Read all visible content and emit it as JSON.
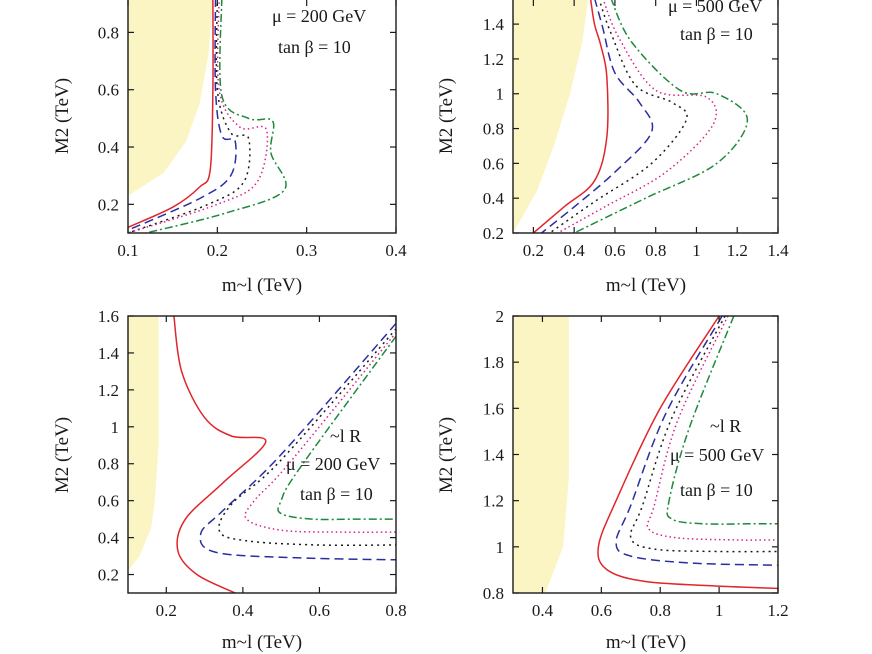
{
  "chart_data": [
    {
      "type": "line",
      "panel": "top-left",
      "xlabel": "m~l (TeV)",
      "ylabel": "M2 (TeV)",
      "xlim": [
        0.1,
        0.4
      ],
      "ylim": [
        0.1,
        0.92
      ],
      "xticks": [
        0.1,
        0.2,
        0.3,
        0.4
      ],
      "xtick_labels": [
        "0.1",
        "0.2",
        "0.3",
        "0.4"
      ],
      "yticks": [
        0.2,
        0.4,
        0.6,
        0.8
      ],
      "ytick_labels": [
        "0.2",
        "0.4",
        "0.6",
        "0.8"
      ],
      "annotations": [
        "μ = 200 GeV",
        "tan β = 10"
      ],
      "grid": false,
      "excluded_region": [
        [
          0.1,
          0.92
        ],
        [
          0.195,
          0.92
        ],
        [
          0.19,
          0.72
        ],
        [
          0.18,
          0.55
        ],
        [
          0.165,
          0.42
        ],
        [
          0.14,
          0.31
        ],
        [
          0.1,
          0.23
        ]
      ],
      "series": [
        {
          "color": "#e0262b",
          "dash": "",
          "points": [
            [
              0.195,
              0.92
            ],
            [
              0.195,
              0.6
            ],
            [
              0.192,
              0.32
            ],
            [
              0.18,
              0.26
            ],
            [
              0.15,
              0.19
            ],
            [
              0.1,
              0.12
            ]
          ]
        },
        {
          "color": "#2a2ea0",
          "dash": "9,5",
          "points": [
            [
              0.198,
              0.92
            ],
            [
              0.198,
              0.6
            ],
            [
              0.205,
              0.44
            ],
            [
              0.22,
              0.42
            ],
            [
              0.215,
              0.3
            ],
            [
              0.18,
              0.22
            ],
            [
              0.1,
              0.11
            ]
          ]
        },
        {
          "color": "#1a1a1a",
          "dash": "2,4",
          "points": [
            [
              0.2,
              0.92
            ],
            [
              0.2,
              0.6
            ],
            [
              0.215,
              0.45
            ],
            [
              0.235,
              0.43
            ],
            [
              0.23,
              0.28
            ],
            [
              0.19,
              0.2
            ],
            [
              0.1,
              0.1
            ]
          ]
        },
        {
          "color": "#d6228a",
          "dash": "1.5,3",
          "points": [
            [
              0.202,
              0.92
            ],
            [
              0.202,
              0.6
            ],
            [
              0.225,
              0.47
            ],
            [
              0.255,
              0.46
            ],
            [
              0.245,
              0.28
            ],
            [
              0.2,
              0.2
            ],
            [
              0.1,
              0.1
            ]
          ]
        },
        {
          "color": "#1e8a3a",
          "dash": "8,3,2,3",
          "points": [
            [
              0.205,
              0.92
            ],
            [
              0.205,
              0.58
            ],
            [
              0.235,
              0.5
            ],
            [
              0.262,
              0.49
            ],
            [
              0.26,
              0.38
            ],
            [
              0.275,
              0.25
            ],
            [
              0.21,
              0.17
            ],
            [
              0.12,
              0.1
            ]
          ]
        }
      ]
    },
    {
      "type": "line",
      "panel": "top-right",
      "xlabel": "m~l (TeV)",
      "ylabel": "M2 (TeV)",
      "xlim": [
        0.1,
        1.4
      ],
      "ylim": [
        0.2,
        1.55
      ],
      "xticks": [
        0.2,
        0.4,
        0.6,
        0.8,
        1,
        1.2,
        1.4
      ],
      "xtick_labels": [
        "0.2",
        "0.4",
        "0.6",
        "0.8",
        "1",
        "1.2",
        "1.4"
      ],
      "yticks": [
        0.2,
        0.4,
        0.6,
        0.8,
        1,
        1.2,
        1.4
      ],
      "ytick_labels": [
        "0.2",
        "0.4",
        "0.6",
        "0.8",
        "1",
        "1.2",
        "1.4"
      ],
      "annotations": [
        "μ = 500 GeV",
        "tan β = 10"
      ],
      "grid": false,
      "excluded_region": [
        [
          0.1,
          1.55
        ],
        [
          0.47,
          1.55
        ],
        [
          0.44,
          1.3
        ],
        [
          0.38,
          1.0
        ],
        [
          0.3,
          0.7
        ],
        [
          0.22,
          0.45
        ],
        [
          0.16,
          0.32
        ],
        [
          0.1,
          0.2
        ]
      ],
      "series": [
        {
          "color": "#e0262b",
          "dash": "",
          "points": [
            [
              0.48,
              1.55
            ],
            [
              0.5,
              1.4
            ],
            [
              0.53,
              1.28
            ],
            [
              0.56,
              1.1
            ],
            [
              0.56,
              0.75
            ],
            [
              0.5,
              0.5
            ],
            [
              0.35,
              0.35
            ],
            [
              0.2,
              0.2
            ]
          ]
        },
        {
          "color": "#2a2ea0",
          "dash": "9,5",
          "points": [
            [
              0.5,
              1.55
            ],
            [
              0.54,
              1.38
            ],
            [
              0.6,
              1.12
            ],
            [
              0.72,
              0.95
            ],
            [
              0.78,
              0.78
            ],
            [
              0.6,
              0.55
            ],
            [
              0.4,
              0.35
            ],
            [
              0.24,
              0.2
            ]
          ]
        },
        {
          "color": "#1a1a1a",
          "dash": "2,4",
          "points": [
            [
              0.52,
              1.55
            ],
            [
              0.58,
              1.35
            ],
            [
              0.7,
              1.05
            ],
            [
              0.88,
              0.95
            ],
            [
              0.95,
              0.85
            ],
            [
              0.78,
              0.6
            ],
            [
              0.5,
              0.38
            ],
            [
              0.28,
              0.2
            ]
          ]
        },
        {
          "color": "#d6228a",
          "dash": "1.5,3",
          "points": [
            [
              0.54,
              1.55
            ],
            [
              0.62,
              1.32
            ],
            [
              0.8,
              1.02
            ],
            [
              1.05,
              0.98
            ],
            [
              1.08,
              0.82
            ],
            [
              0.85,
              0.55
            ],
            [
              0.55,
              0.35
            ],
            [
              0.32,
              0.2
            ]
          ]
        },
        {
          "color": "#1e8a3a",
          "dash": "8,3,2,3",
          "points": [
            [
              0.58,
              1.55
            ],
            [
              0.68,
              1.3
            ],
            [
              0.92,
              1.02
            ],
            [
              1.1,
              1.0
            ],
            [
              1.25,
              0.85
            ],
            [
              1.1,
              0.6
            ],
            [
              0.75,
              0.4
            ],
            [
              0.4,
              0.2
            ]
          ]
        }
      ]
    },
    {
      "type": "line",
      "panel": "bottom-left",
      "xlabel": "m~l (TeV)",
      "ylabel": "M2 (TeV)",
      "xlim": [
        0.1,
        0.8
      ],
      "ylim": [
        0.1,
        1.6
      ],
      "xticks": [
        0.2,
        0.4,
        0.6,
        0.8
      ],
      "xtick_labels": [
        "0.2",
        "0.4",
        "0.6",
        "0.8"
      ],
      "yticks": [
        0.2,
        0.4,
        0.6,
        0.8,
        1,
        1.2,
        1.4,
        1.6
      ],
      "ytick_labels": [
        "0.2",
        "0.4",
        "0.6",
        "0.8",
        "1",
        "1.2",
        "1.4",
        "1.6"
      ],
      "annotations": [
        "~l R",
        "μ = 200 GeV",
        "tan β = 10"
      ],
      "grid": false,
      "excluded_region": [
        [
          0.1,
          1.6
        ],
        [
          0.18,
          1.6
        ],
        [
          0.18,
          0.9
        ],
        [
          0.17,
          0.6
        ],
        [
          0.16,
          0.45
        ],
        [
          0.13,
          0.3
        ],
        [
          0.1,
          0.22
        ]
      ],
      "series": [
        {
          "color": "#e0262b",
          "dash": "",
          "points": [
            [
              0.22,
              1.6
            ],
            [
              0.24,
              1.3
            ],
            [
              0.3,
              1.05
            ],
            [
              0.37,
              0.95
            ],
            [
              0.46,
              0.92
            ],
            [
              0.35,
              0.7
            ],
            [
              0.25,
              0.5
            ],
            [
              0.23,
              0.33
            ],
            [
              0.28,
              0.2
            ],
            [
              0.38,
              0.1
            ]
          ]
        },
        {
          "color": "#2a2ea0",
          "dash": "9,5",
          "points": [
            [
              0.8,
              1.56
            ],
            [
              0.5,
              0.85
            ],
            [
              0.35,
              0.55
            ],
            [
              0.29,
              0.42
            ],
            [
              0.33,
              0.32
            ],
            [
              0.55,
              0.29
            ],
            [
              0.8,
              0.28
            ]
          ]
        },
        {
          "color": "#1a1a1a",
          "dash": "2,4",
          "points": [
            [
              0.8,
              1.53
            ],
            [
              0.5,
              0.82
            ],
            [
              0.37,
              0.58
            ],
            [
              0.34,
              0.43
            ],
            [
              0.42,
              0.38
            ],
            [
              0.6,
              0.36
            ],
            [
              0.8,
              0.36
            ]
          ]
        },
        {
          "color": "#d6228a",
          "dash": "1.5,3",
          "points": [
            [
              0.8,
              1.51
            ],
            [
              0.52,
              0.8
            ],
            [
              0.43,
              0.6
            ],
            [
              0.41,
              0.5
            ],
            [
              0.5,
              0.44
            ],
            [
              0.65,
              0.43
            ],
            [
              0.8,
              0.43
            ]
          ]
        },
        {
          "color": "#1e8a3a",
          "dash": "8,3,2,3",
          "points": [
            [
              0.8,
              1.49
            ],
            [
              0.55,
              0.78
            ],
            [
              0.5,
              0.6
            ],
            [
              0.5,
              0.53
            ],
            [
              0.58,
              0.5
            ],
            [
              0.7,
              0.5
            ],
            [
              0.8,
              0.5
            ]
          ]
        }
      ]
    },
    {
      "type": "line",
      "panel": "bottom-right",
      "xlabel": "m~l (TeV)",
      "ylabel": "M2 (TeV)",
      "xlim": [
        0.3,
        1.2
      ],
      "ylim": [
        0.8,
        2.0
      ],
      "xticks": [
        0.4,
        0.6,
        0.8,
        1,
        1.2
      ],
      "xtick_labels": [
        "0.4",
        "0.6",
        "0.8",
        "1",
        "1.2"
      ],
      "yticks": [
        0.8,
        1,
        1.2,
        1.4,
        1.6,
        1.8,
        2
      ],
      "ytick_labels": [
        "0.8",
        "1",
        "1.2",
        "1.4",
        "1.6",
        "1.8",
        "2"
      ],
      "annotations": [
        "~l R",
        "μ = 500 GeV",
        "tan β = 10"
      ],
      "grid": false,
      "excluded_region": [
        [
          0.3,
          2.0
        ],
        [
          0.49,
          2.0
        ],
        [
          0.49,
          1.3
        ],
        [
          0.47,
          1.0
        ],
        [
          0.44,
          0.9
        ],
        [
          0.41,
          0.8
        ],
        [
          0.3,
          0.8
        ]
      ],
      "series": [
        {
          "color": "#e0262b",
          "dash": "",
          "points": [
            [
              1.0,
              2.0
            ],
            [
              0.8,
              1.6
            ],
            [
              0.65,
              1.2
            ],
            [
              0.59,
              1.0
            ],
            [
              0.62,
              0.9
            ],
            [
              0.75,
              0.85
            ],
            [
              1.0,
              0.83
            ],
            [
              1.2,
              0.82
            ]
          ]
        },
        {
          "color": "#2a2ea0",
          "dash": "9,5",
          "points": [
            [
              1.01,
              2.0
            ],
            [
              0.82,
              1.58
            ],
            [
              0.7,
              1.18
            ],
            [
              0.65,
              1.02
            ],
            [
              0.7,
              0.96
            ],
            [
              0.9,
              0.93
            ],
            [
              1.2,
              0.92
            ]
          ]
        },
        {
          "color": "#1a1a1a",
          "dash": "2,4",
          "points": [
            [
              1.02,
              2.0
            ],
            [
              0.84,
              1.56
            ],
            [
              0.74,
              1.18
            ],
            [
              0.7,
              1.04
            ],
            [
              0.78,
              0.99
            ],
            [
              1.0,
              0.98
            ],
            [
              1.2,
              0.98
            ]
          ]
        },
        {
          "color": "#d6228a",
          "dash": "1.5,3",
          "points": [
            [
              1.03,
              2.0
            ],
            [
              0.86,
              1.55
            ],
            [
              0.78,
              1.18
            ],
            [
              0.76,
              1.08
            ],
            [
              0.85,
              1.04
            ],
            [
              1.05,
              1.03
            ],
            [
              1.2,
              1.03
            ]
          ]
        },
        {
          "color": "#1e8a3a",
          "dash": "8,3,2,3",
          "points": [
            [
              1.05,
              2.0
            ],
            [
              0.9,
              1.52
            ],
            [
              0.83,
              1.2
            ],
            [
              0.84,
              1.12
            ],
            [
              0.95,
              1.1
            ],
            [
              1.1,
              1.1
            ],
            [
              1.2,
              1.1
            ]
          ]
        }
      ]
    }
  ],
  "colors": {
    "excluded_fill": "#faf5c2",
    "frame": "#1a1a1a"
  }
}
